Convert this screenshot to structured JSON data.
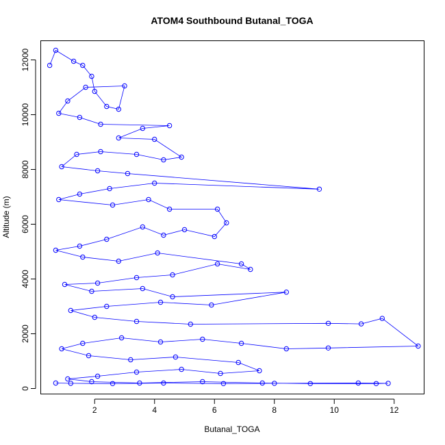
{
  "chart_data": {
    "type": "line",
    "title": "ATOM4 Southbound Butanal_TOGA",
    "xlabel": "Butanal_TOGA",
    "ylabel": "Altitude (m)",
    "xlim": [
      0.2,
      13.0
    ],
    "ylim": [
      -200,
      12700
    ],
    "x_ticks": [
      2,
      4,
      6,
      8,
      10,
      12
    ],
    "y_ticks": [
      0,
      2000,
      4000,
      6000,
      8000,
      10000,
      12000
    ],
    "series": [
      {
        "color": "#0000ff",
        "marker": "open-circle",
        "points": [
          [
            0.5,
            11800
          ],
          [
            0.7,
            12350
          ],
          [
            1.3,
            11950
          ],
          [
            1.6,
            11800
          ],
          [
            1.9,
            11400
          ],
          [
            2.0,
            10850
          ],
          [
            2.4,
            10300
          ],
          [
            2.8,
            10200
          ],
          [
            3.0,
            11050
          ],
          [
            1.7,
            11000
          ],
          [
            1.1,
            10500
          ],
          [
            0.8,
            10050
          ],
          [
            1.5,
            9900
          ],
          [
            2.2,
            9650
          ],
          [
            4.5,
            9600
          ],
          [
            3.6,
            9500
          ],
          [
            2.8,
            9150
          ],
          [
            4.0,
            9100
          ],
          [
            4.9,
            8450
          ],
          [
            4.3,
            8350
          ],
          [
            3.4,
            8550
          ],
          [
            2.2,
            8650
          ],
          [
            1.4,
            8550
          ],
          [
            0.9,
            8100
          ],
          [
            2.1,
            7950
          ],
          [
            3.1,
            7850
          ],
          [
            9.5,
            7280
          ],
          [
            4.0,
            7500
          ],
          [
            2.5,
            7300
          ],
          [
            1.5,
            7100
          ],
          [
            0.8,
            6900
          ],
          [
            2.6,
            6700
          ],
          [
            3.8,
            6900
          ],
          [
            4.5,
            6550
          ],
          [
            6.1,
            6550
          ],
          [
            6.4,
            6050
          ],
          [
            6.0,
            5550
          ],
          [
            5.0,
            5800
          ],
          [
            4.3,
            5600
          ],
          [
            3.6,
            5900
          ],
          [
            2.4,
            5450
          ],
          [
            1.5,
            5200
          ],
          [
            0.7,
            5050
          ],
          [
            1.6,
            4800
          ],
          [
            2.8,
            4650
          ],
          [
            4.1,
            4950
          ],
          [
            6.9,
            4550
          ],
          [
            7.2,
            4350
          ],
          [
            6.1,
            4550
          ],
          [
            4.6,
            4150
          ],
          [
            3.4,
            4050
          ],
          [
            2.1,
            3850
          ],
          [
            1.0,
            3800
          ],
          [
            1.9,
            3550
          ],
          [
            3.6,
            3650
          ],
          [
            4.6,
            3350
          ],
          [
            8.4,
            3520
          ],
          [
            5.9,
            3050
          ],
          [
            4.2,
            3150
          ],
          [
            2.4,
            3000
          ],
          [
            1.2,
            2850
          ],
          [
            2.0,
            2600
          ],
          [
            3.4,
            2450
          ],
          [
            5.2,
            2350
          ],
          [
            9.8,
            2380
          ],
          [
            10.9,
            2360
          ],
          [
            11.6,
            2560
          ],
          [
            12.8,
            1550
          ],
          [
            9.8,
            1480
          ],
          [
            8.4,
            1450
          ],
          [
            6.9,
            1650
          ],
          [
            5.6,
            1800
          ],
          [
            4.2,
            1700
          ],
          [
            2.9,
            1850
          ],
          [
            1.6,
            1650
          ],
          [
            0.9,
            1450
          ],
          [
            1.8,
            1200
          ],
          [
            3.2,
            1050
          ],
          [
            4.7,
            1150
          ],
          [
            6.8,
            950
          ],
          [
            7.5,
            650
          ],
          [
            6.2,
            550
          ],
          [
            4.9,
            700
          ],
          [
            3.4,
            600
          ],
          [
            2.1,
            450
          ],
          [
            1.1,
            350
          ],
          [
            1.9,
            250
          ],
          [
            3.5,
            200
          ],
          [
            5.6,
            250
          ],
          [
            7.6,
            200
          ],
          [
            9.2,
            180
          ],
          [
            11.4,
            180
          ],
          [
            11.8,
            190
          ],
          [
            10.8,
            200
          ],
          [
            8.0,
            190
          ],
          [
            6.3,
            180
          ],
          [
            4.3,
            200
          ],
          [
            2.6,
            180
          ],
          [
            1.2,
            190
          ],
          [
            0.7,
            200
          ]
        ]
      }
    ]
  }
}
